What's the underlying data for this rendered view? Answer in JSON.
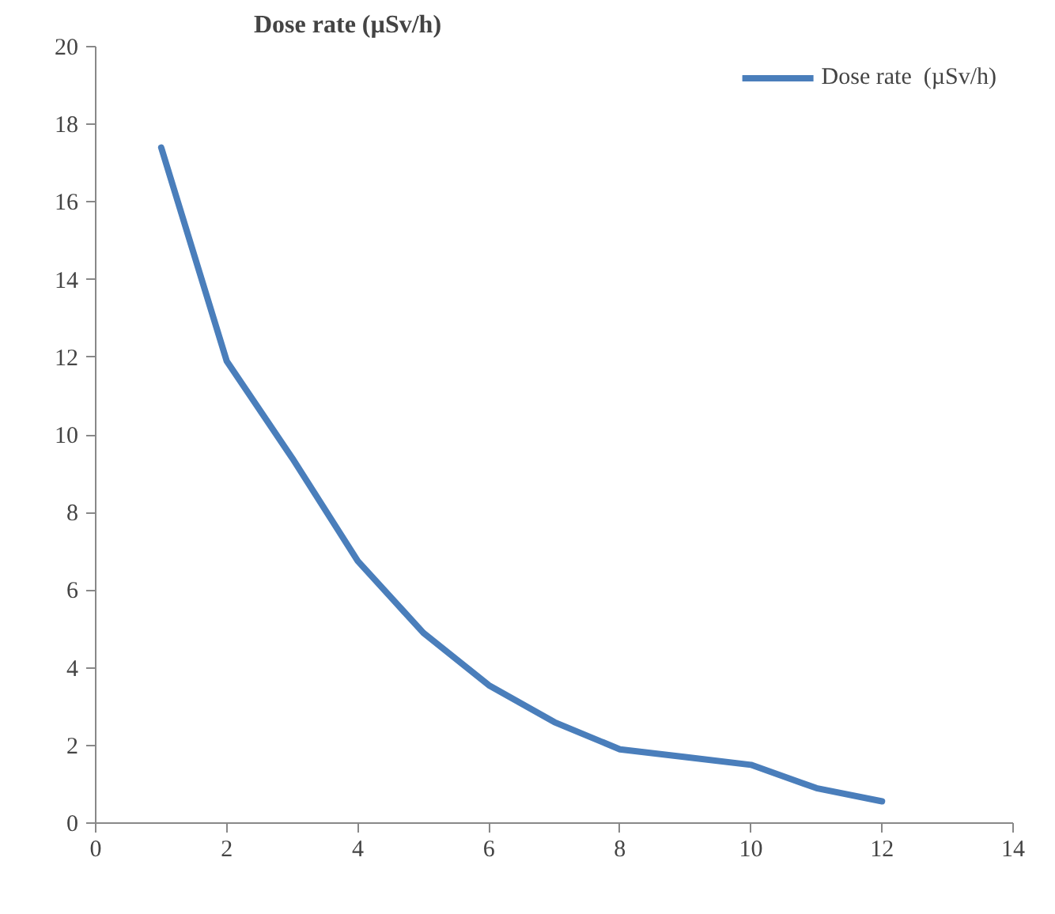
{
  "chart_data": {
    "type": "line",
    "title": "Dose rate  (µSv/h)",
    "x": [
      1,
      2,
      3,
      4,
      5,
      6,
      7,
      8,
      9,
      10,
      11,
      12
    ],
    "series": [
      {
        "name": "Dose rate  (µSv/h)",
        "color": "#4a7ebb",
        "values": [
          17.4,
          11.9,
          9.4,
          6.75,
          4.9,
          3.55,
          2.6,
          1.9,
          1.7,
          1.5,
          0.9,
          0.56
        ]
      }
    ],
    "xlim": [
      0,
      14
    ],
    "xticks": [
      0,
      2,
      4,
      6,
      8,
      10,
      12,
      14
    ],
    "ylim": [
      0,
      20
    ],
    "yticks": [
      0,
      2,
      4,
      6,
      8,
      10,
      12,
      14,
      16,
      18,
      20
    ],
    "grid": false,
    "legend": "top right",
    "marker": "none",
    "line_style": "solid"
  }
}
